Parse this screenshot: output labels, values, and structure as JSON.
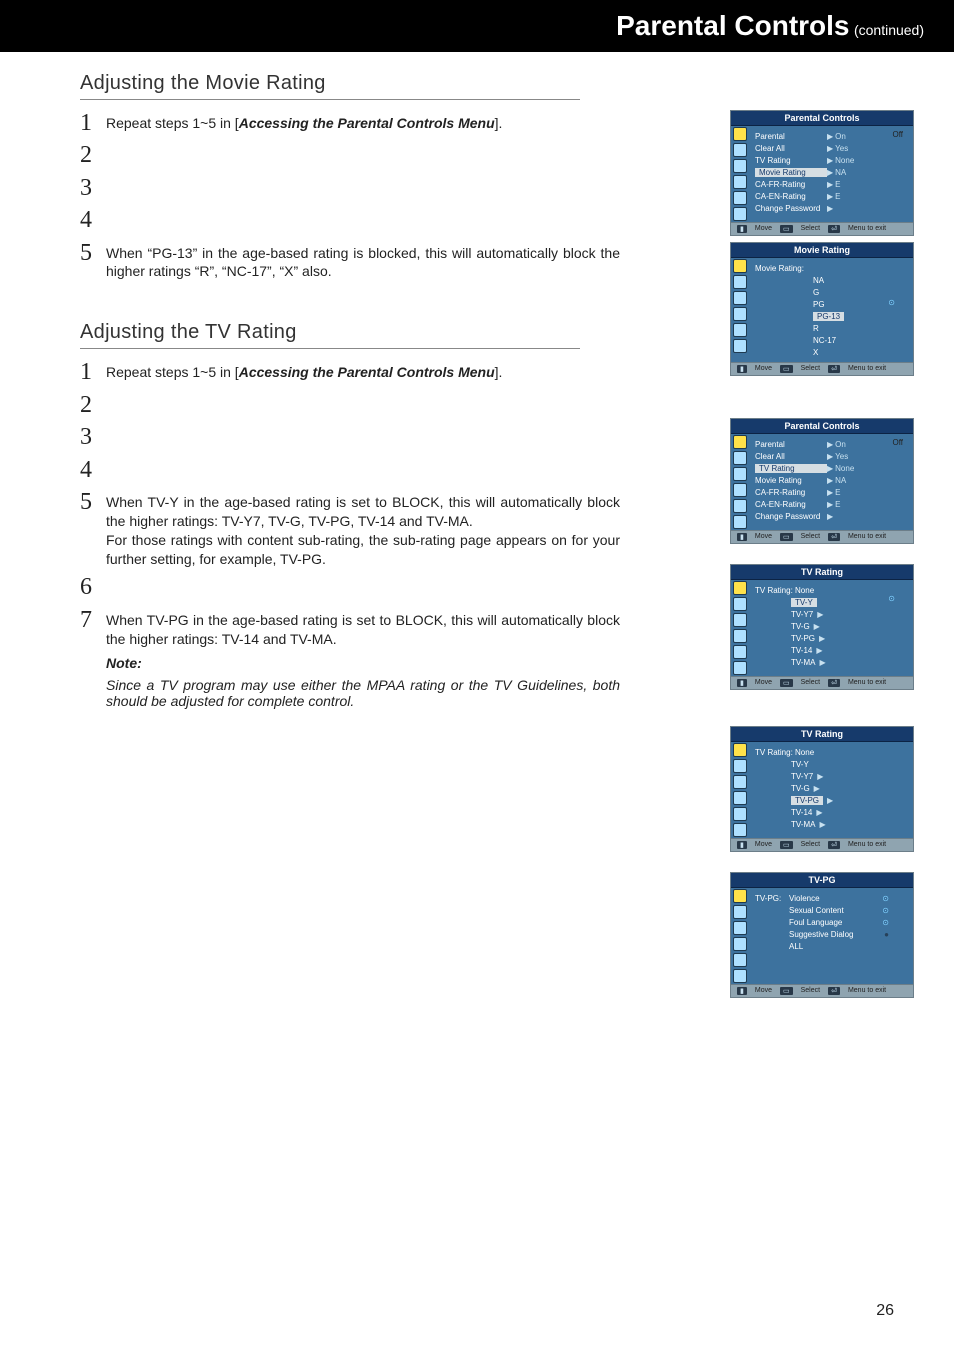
{
  "header": {
    "title": "Parental Controls",
    "continued": "(continued)"
  },
  "movie": {
    "heading": "Adjusting the Movie Rating",
    "steps": {
      "s1_pre": "Repeat steps 1~5 in [",
      "s1_bold": "Accessing the Parental Controls Menu",
      "s1_post": "].",
      "s5a": "When “PG-13” in the age-based rating is blocked, this will automatically block the higher ratings “R”, “NC-17”, “X” also."
    }
  },
  "tv": {
    "heading": "Adjusting the TV Rating",
    "steps": {
      "s1_pre": "Repeat steps 1~5 in [",
      "s1_bold": "Accessing the Parental Controls Menu",
      "s1_post": "].",
      "s5a": "When TV-Y in the age-based rating is set to BLOCK, this will automatically block the higher ratings: TV-Y7, TV-G, TV-PG, TV-14 and TV-MA.",
      "s5b": "For those ratings with content sub-rating, the sub-rating page appears on for your further setting, for example, TV-PG.",
      "s7a": "When TV-PG in the age-based rating is set to BLOCK, this will automatically block the higher ratings: TV-14 and TV-MA."
    },
    "note_label": "Note:",
    "note_text": "Since a TV program may use either the MPAA rating or the TV Guidelines, both should be adjusted for complete control."
  },
  "osd": {
    "footer_move": "Move",
    "footer_select": "Select",
    "footer_exit": "Menu to exit",
    "pc_title": "Parental Controls",
    "pc_rows": {
      "parental": "Parental",
      "parental_v": "On",
      "parental_off": "Off",
      "clearall": "Clear All",
      "clearall_v": "Yes",
      "tvrating": "TV Rating",
      "tvrating_v": "None",
      "movierating": "Movie Rating",
      "movierating_v": "NA",
      "cafr": "CA-FR-Rating",
      "cafr_v": "E",
      "caen": "CA-EN-Rating",
      "caen_v": "E",
      "chpw": "Change Password"
    },
    "movie_title": "Movie Rating",
    "movie_label": "Movie Rating:",
    "movie_items": [
      "NA",
      "G",
      "PG",
      "PG-13",
      "R",
      "NC-17",
      "X"
    ],
    "movie_hl_index": 3,
    "tv_title": "TV Rating",
    "tv_label": "TV Rating: None",
    "tv_items": [
      "TV-Y",
      "TV-Y7",
      "TV-G",
      "TV-PG",
      "TV-14",
      "TV-MA"
    ],
    "tv_hl1_index": 0,
    "tv_hl2_index": 3,
    "tvpg_title": "TV-PG",
    "tvpg_label": "TV-PG:",
    "tvpg_items": [
      "Violence",
      "Sexual Content",
      "Foul Language",
      "Suggestive Dialog",
      "ALL"
    ]
  },
  "page_num": "26"
}
